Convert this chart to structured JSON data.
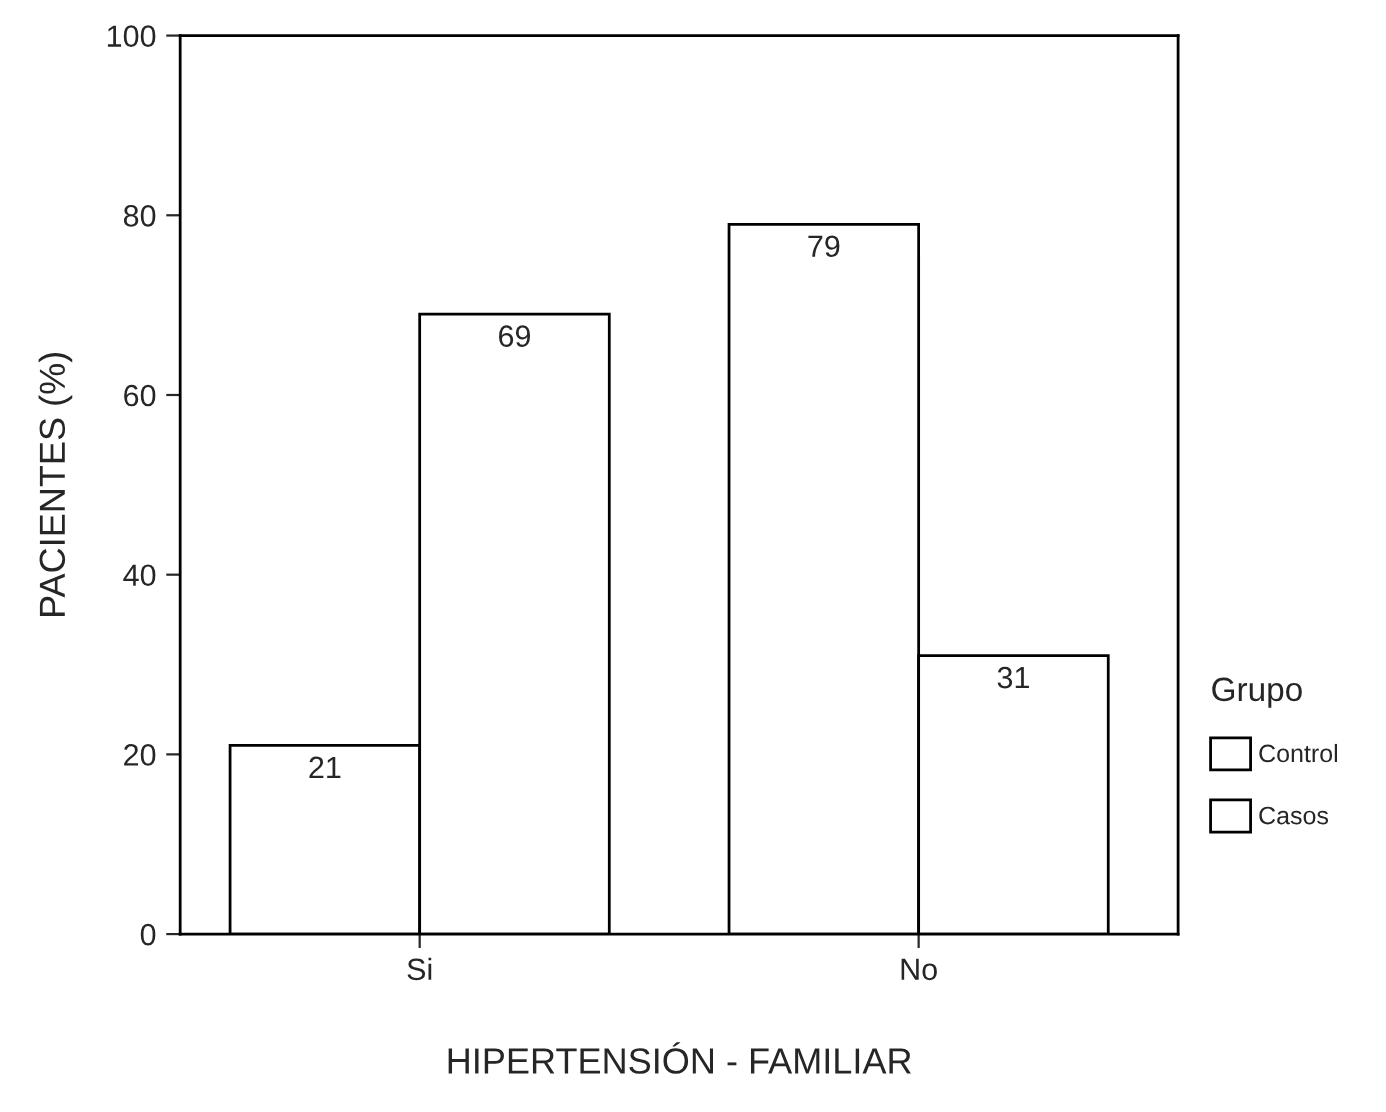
{
  "chart_data": {
    "type": "bar",
    "xlabel": "HIPERTENSIÓN - FAMILIAR",
    "ylabel": "PACIENTES (%)",
    "categories": [
      "Si",
      "No"
    ],
    "series": [
      {
        "name": "Control",
        "color": "#ffffff",
        "values": [
          21,
          79
        ]
      },
      {
        "name": "Casos",
        "color": "#ffffff",
        "values": [
          69,
          31
        ]
      }
    ],
    "ylim": [
      0,
      100
    ],
    "yticks": [
      0,
      20,
      40,
      60,
      80,
      100
    ],
    "grid": false,
    "data_labels": true,
    "legend": "right",
    "legend_title": "Grupo"
  }
}
